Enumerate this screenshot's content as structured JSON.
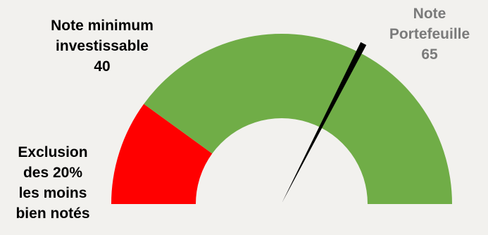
{
  "chart_data": {
    "type": "gauge",
    "range": [
      0,
      100
    ],
    "bands": [
      {
        "from": 0,
        "to": 20,
        "color": "#ff0000"
      },
      {
        "from": 20,
        "to": 100,
        "color": "#70ad47"
      }
    ],
    "needle": {
      "value": 65,
      "color": "#000000"
    },
    "annotations": {
      "minimum": {
        "line1": "Note minimum",
        "line2": "investissable",
        "value": "40"
      },
      "exclusion": {
        "line1": "Exclusion",
        "line2": "des 20%",
        "line3": "les moins",
        "line4": "bien notés"
      },
      "portfolio": {
        "line1": "Note",
        "line2": "Portefeuille",
        "value": "65"
      }
    }
  }
}
